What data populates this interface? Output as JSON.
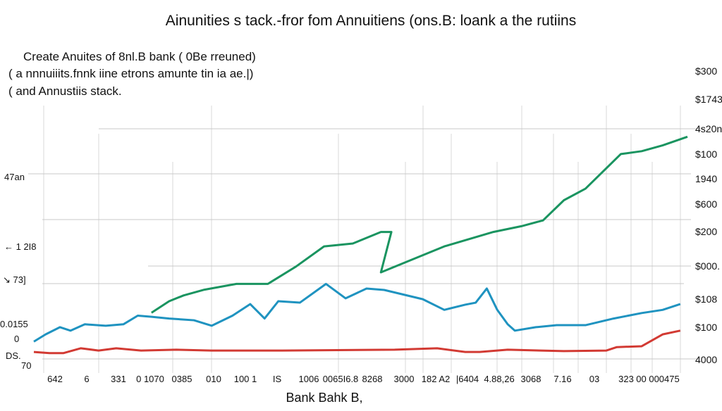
{
  "chart_data": {
    "type": "line",
    "title": "Ainunities s tack.-fror  fom Annuitiens  (ons.B: loank a the rutiins",
    "subtitle_lines": [
      "Create Anuites of 8nl.B bank ( 0Be rreuned)",
      "( a nnnuiiits.fnnk iine etrons  amunte  tin  ia  ae.|)",
      "( and Annustiis stack."
    ],
    "xlabel": "Bank Bahk  B,",
    "ylabel": "",
    "grid": true,
    "x_tick_labels": [
      "642",
      "6",
      "331",
      "0 1070",
      "0385",
      "010",
      "100 1",
      "IS",
      "1006",
      "0065I6.8",
      "8268",
      "3000",
      "182 A2",
      "|6404",
      "4.88,26",
      "3068",
      "7.16",
      "03",
      "323",
      "00 000475"
    ],
    "left_tick_labels": [
      "47an",
      "← 1 2I8",
      "↘ 73]",
      "0.0155",
      "0",
      "DS.",
      "70"
    ],
    "right_tick_labels": [
      "$300",
      "$1743",
      "4s20n",
      "$100",
      "1940",
      "$600",
      "$200",
      "$000.",
      "$108",
      "$100",
      "4000"
    ],
    "colors": {
      "green": "#1a9460",
      "blue": "#1f93c0",
      "red": "#d23a33",
      "grid": "#d9d9d9"
    },
    "series": [
      {
        "color": "#1a9460",
        "points": [
          [
            18,
            16
          ],
          [
            20.7,
            20
          ],
          [
            22.9,
            22
          ],
          [
            26.1,
            24
          ],
          [
            31,
            26
          ],
          [
            35.8,
            26
          ],
          [
            40.1,
            32
          ],
          [
            44.4,
            39
          ],
          [
            48.8,
            40
          ],
          [
            53.1,
            44
          ],
          [
            54.7,
            44
          ],
          [
            53.1,
            30
          ],
          [
            57.4,
            34
          ],
          [
            62.8,
            39
          ],
          [
            70.3,
            44
          ],
          [
            74.6,
            46
          ],
          [
            77.9,
            48
          ],
          [
            81.1,
            55
          ],
          [
            84.4,
            59
          ],
          [
            89.8,
            71
          ],
          [
            93,
            72
          ],
          [
            96.2,
            74
          ],
          [
            100,
            77
          ]
        ]
      },
      {
        "color": "#1f93c0",
        "points": [
          [
            0,
            6
          ],
          [
            1.8,
            8.5
          ],
          [
            4,
            11
          ],
          [
            5.6,
            9.8
          ],
          [
            7.8,
            12
          ],
          [
            11,
            11.5
          ],
          [
            13.7,
            12
          ],
          [
            15.9,
            15
          ],
          [
            18,
            14.6
          ],
          [
            20.7,
            14
          ],
          [
            24.5,
            13.4
          ],
          [
            27.2,
            11.5
          ],
          [
            30.4,
            15
          ],
          [
            33.1,
            19
          ],
          [
            35.3,
            14
          ],
          [
            37.4,
            20
          ],
          [
            40.7,
            19.5
          ],
          [
            44.7,
            26
          ],
          [
            47.7,
            21
          ],
          [
            50.9,
            24.4
          ],
          [
            53.6,
            23.9
          ],
          [
            59.5,
            20.7
          ],
          [
            62.8,
            17
          ],
          [
            66,
            18.8
          ],
          [
            67.6,
            19.5
          ],
          [
            69.3,
            24.4
          ],
          [
            70.9,
            17
          ],
          [
            72.5,
            12
          ],
          [
            73.6,
            9.8
          ],
          [
            76.8,
            11
          ],
          [
            80,
            11.7
          ],
          [
            84.4,
            11.7
          ],
          [
            88.7,
            14
          ],
          [
            93,
            15.9
          ],
          [
            96.2,
            17
          ],
          [
            98.9,
            19
          ]
        ]
      },
      {
        "color": "#d23a33",
        "points": [
          [
            0,
            2.4
          ],
          [
            2.4,
            2
          ],
          [
            4.5,
            2
          ],
          [
            7.2,
            3.7
          ],
          [
            9.9,
            2.9
          ],
          [
            12.6,
            3.7
          ],
          [
            16.4,
            2.9
          ],
          [
            21.8,
            3.2
          ],
          [
            27.2,
            2.9
          ],
          [
            38,
            2.9
          ],
          [
            55.2,
            3.2
          ],
          [
            61.7,
            3.7
          ],
          [
            66,
            2.4
          ],
          [
            68.2,
            2.4
          ],
          [
            72.5,
            3.2
          ],
          [
            81.1,
            2.7
          ],
          [
            87.6,
            2.9
          ],
          [
            89.2,
            4.1
          ],
          [
            93,
            4.4
          ],
          [
            96.2,
            8.5
          ],
          [
            98.9,
            9.8
          ]
        ]
      }
    ],
    "xlim": [
      0,
      100
    ],
    "ylim": [
      0,
      100
    ]
  }
}
